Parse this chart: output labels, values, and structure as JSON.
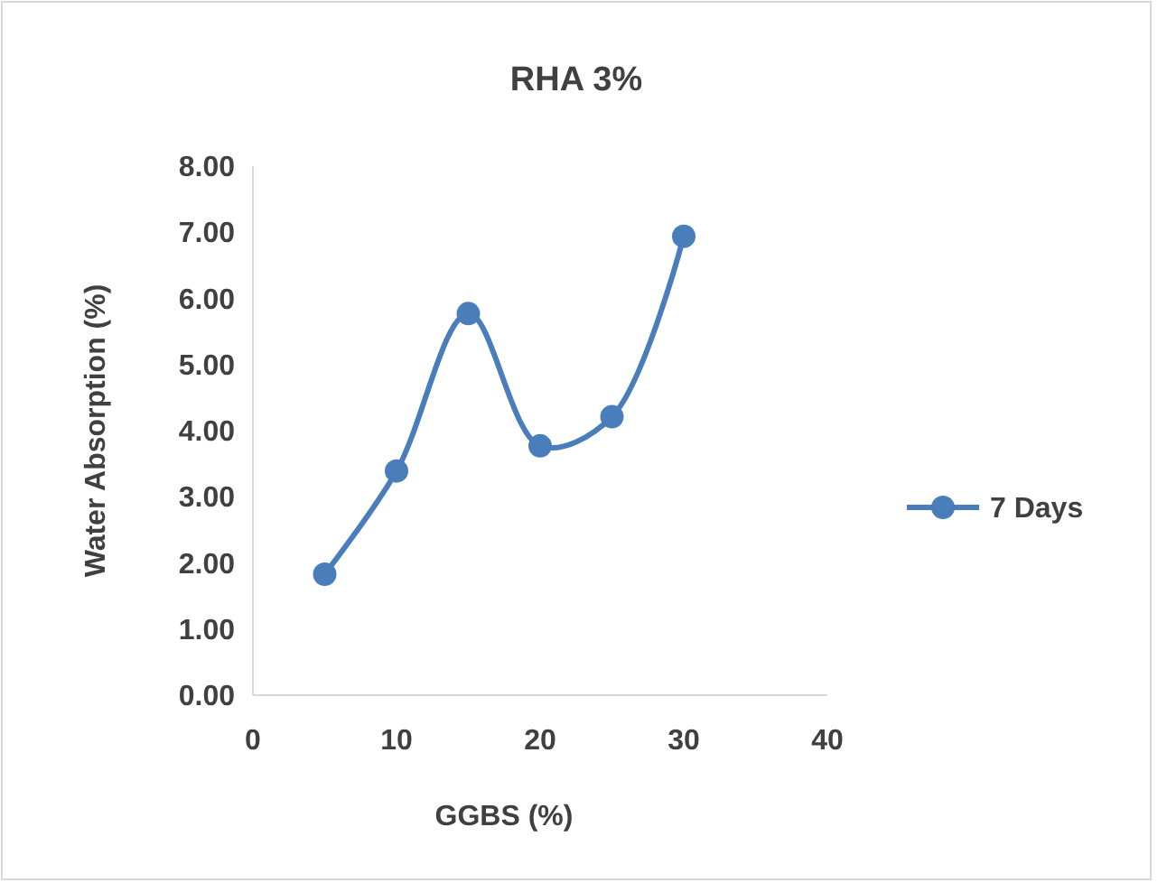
{
  "chart_data": {
    "type": "line",
    "title": "RHA 3%",
    "xlabel": "GGBS (%)",
    "ylabel": "Water Absorption (%)",
    "x": [
      5,
      10,
      15,
      20,
      25,
      30
    ],
    "series": [
      {
        "name": "7 Days",
        "color": "#4a7ebb",
        "values": [
          1.83,
          3.39,
          5.77,
          3.77,
          4.21,
          6.94
        ]
      }
    ],
    "xlim": [
      0,
      40
    ],
    "xticks": [
      0,
      10,
      20,
      30,
      40
    ],
    "ylim": [
      0,
      8
    ],
    "yticks": [
      {
        "value": 0,
        "label": "0.00"
      },
      {
        "value": 1,
        "label": "1.00"
      },
      {
        "value": 2,
        "label": "2.00"
      },
      {
        "value": 3,
        "label": "3.00"
      },
      {
        "value": 4,
        "label": "4.00"
      },
      {
        "value": 5,
        "label": "5.00"
      },
      {
        "value": 6,
        "label": "6.00"
      },
      {
        "value": 7,
        "label": "7.00"
      },
      {
        "value": 8,
        "label": "8.00"
      }
    ],
    "grid": false,
    "legend": "right",
    "marker": "circle",
    "line_style": "solid"
  }
}
